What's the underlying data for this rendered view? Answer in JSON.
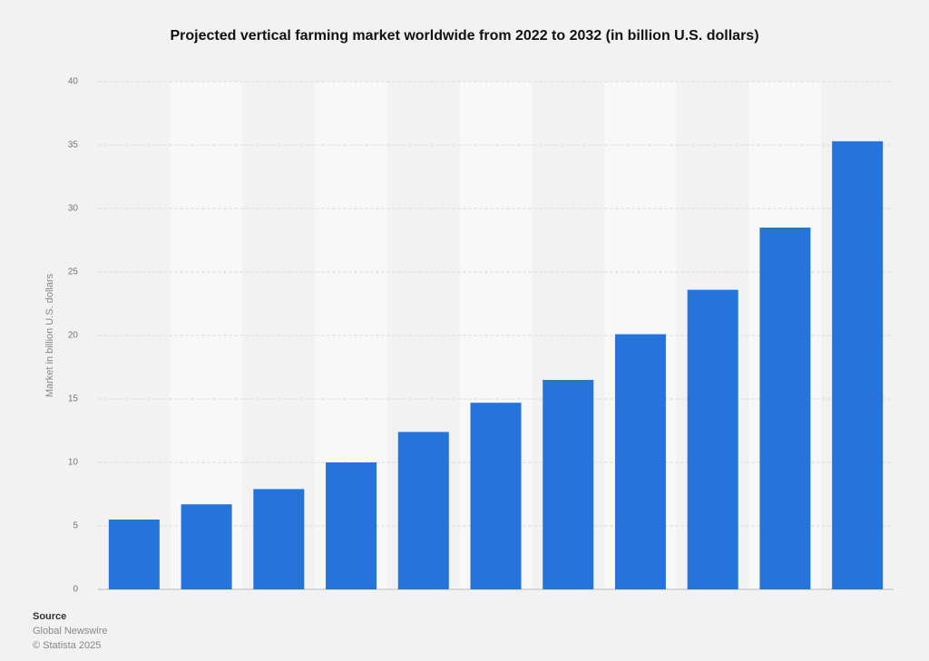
{
  "chart_data": {
    "type": "bar",
    "title": "Projected vertical farming market worldwide from 2022 to 2032 (in billion U.S. dollars)",
    "y_label": "Market in billion U.S. dollars",
    "categories": [
      null,
      null,
      null,
      null,
      null,
      null,
      null,
      null,
      null,
      null,
      null
    ],
    "values": [
      5.5,
      6.7,
      7.9,
      10.0,
      12.4,
      14.7,
      16.5,
      20.1,
      23.6,
      28.5,
      35.3
    ],
    "color": "#2574d9",
    "ylim": [
      0,
      40
    ],
    "yticks": [
      0,
      5,
      10,
      15,
      20,
      25,
      30,
      35,
      40
    ],
    "grid": true
  },
  "footer": {
    "source_heading": "Source",
    "source": "Global Newswire",
    "copyright": "© Statista 2025"
  }
}
